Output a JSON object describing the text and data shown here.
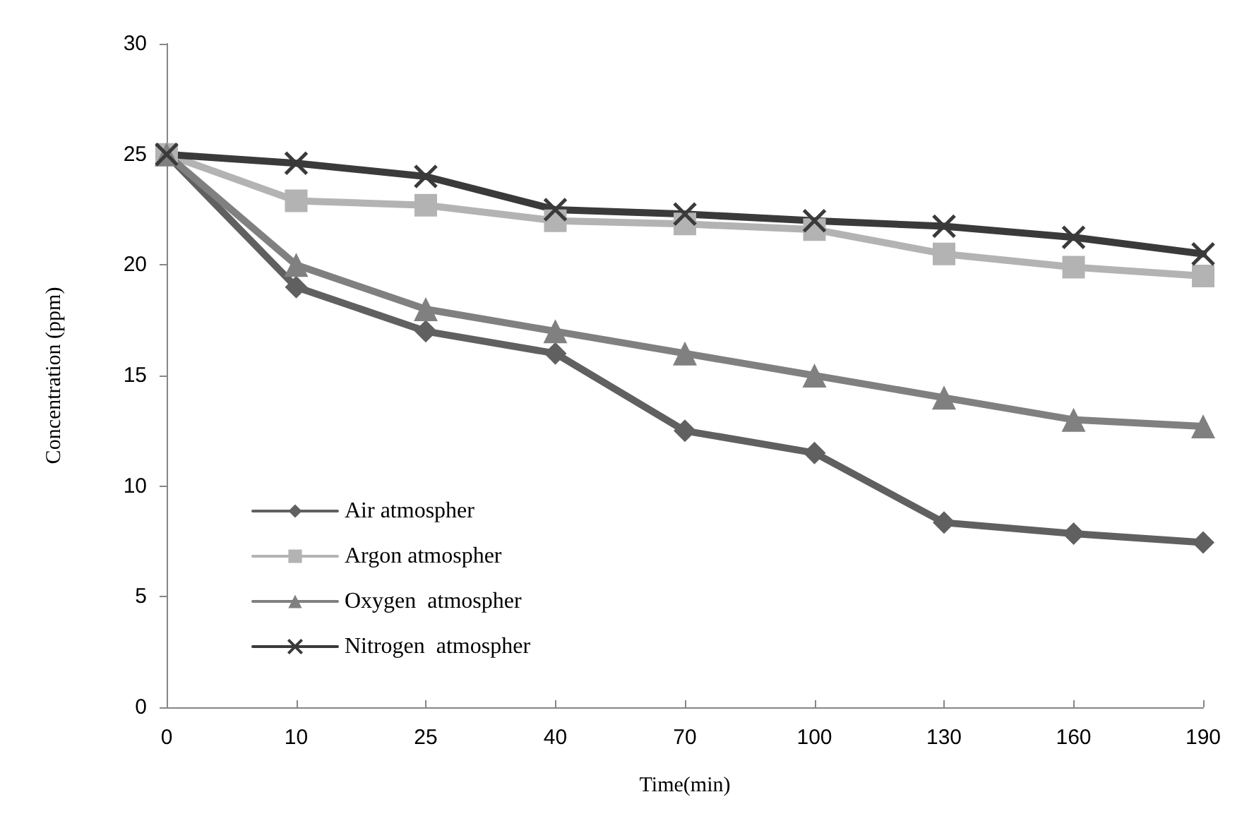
{
  "chart_data": {
    "type": "line",
    "xlabel": "Time(min)",
    "ylabel": "Concentration (ppm)",
    "categories": [
      "0",
      "10",
      "25",
      "40",
      "70",
      "100",
      "130",
      "160",
      "190"
    ],
    "ylim": [
      0,
      30
    ],
    "yticks": [
      0,
      5,
      10,
      15,
      20,
      25,
      30
    ],
    "grid": false,
    "legend": "bottom left",
    "line_style": "solid",
    "series": [
      {
        "name": "Air atmospher",
        "color": "#606060",
        "marker": "diamond",
        "values": [
          25,
          19,
          17,
          16,
          12.5,
          11.5,
          8.35,
          7.85,
          7.45
        ]
      },
      {
        "name": "Argon atmospher",
        "color": "#b3b3b3",
        "marker": "square",
        "values": [
          25,
          22.9,
          22.7,
          22,
          21.85,
          21.6,
          20.5,
          19.9,
          19.5
        ]
      },
      {
        "name": "Oxygen  atmospher",
        "color": "#808080",
        "marker": "triangle",
        "values": [
          25,
          20,
          18,
          17,
          16,
          15,
          14,
          13,
          12.7
        ]
      },
      {
        "name": "Nitrogen  atmospher",
        "color": "#3a3a3a",
        "marker": "cross",
        "values": [
          25,
          24.6,
          24,
          22.5,
          22.3,
          22,
          21.75,
          21.25,
          20.5
        ]
      }
    ]
  }
}
